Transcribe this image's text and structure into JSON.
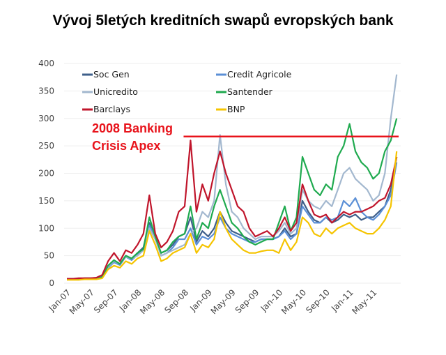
{
  "chart_data": {
    "type": "line",
    "title": "Vývoj 5letých kreditních swapů evropských bank",
    "xlabel": "",
    "ylabel": "",
    "ylim": [
      0,
      400
    ],
    "yticks": [
      0,
      50,
      100,
      150,
      200,
      250,
      300,
      350,
      400
    ],
    "xtick_labels": [
      "Jan-07",
      "May-07",
      "Sep-07",
      "Jan-08",
      "May-08",
      "Sep-08",
      "Jan-09",
      "May-09",
      "Sep-09",
      "Jan-10",
      "May-10",
      "Sep-10",
      "Jan-11",
      "May-11"
    ],
    "x_start": "Jan-07",
    "x_step": "monthly",
    "annotation": {
      "lines": [
        "2008 Banking",
        "Crisis Apex"
      ],
      "level": 267,
      "from_month_index": 21,
      "color": "#e8131b"
    },
    "series": [
      {
        "name": "Soc Gen",
        "color": "#3e5f8a",
        "values": [
          8,
          8,
          8,
          9,
          9,
          9,
          12,
          30,
          40,
          35,
          50,
          45,
          55,
          65,
          110,
          80,
          55,
          60,
          70,
          85,
          90,
          120,
          75,
          95,
          85,
          100,
          130,
          110,
          95,
          90,
          85,
          80,
          75,
          80,
          80,
          80,
          85,
          100,
          85,
          90,
          150,
          130,
          115,
          110,
          120,
          110,
          115,
          125,
          120,
          125,
          115,
          120,
          120,
          130,
          140,
          170,
          230
        ]
      },
      {
        "name": "Credit Agricole",
        "color": "#5b8fd6",
        "values": [
          7,
          7,
          7,
          8,
          8,
          8,
          11,
          28,
          38,
          33,
          48,
          42,
          52,
          60,
          105,
          85,
          50,
          55,
          65,
          80,
          80,
          100,
          70,
          85,
          80,
          90,
          120,
          100,
          90,
          85,
          80,
          75,
          75,
          80,
          80,
          80,
          85,
          95,
          80,
          90,
          140,
          125,
          110,
          110,
          120,
          115,
          120,
          150,
          140,
          155,
          130,
          120,
          115,
          125,
          140,
          160,
          220
        ]
      },
      {
        "name": "Unicredito",
        "color": "#a3b8cf",
        "values": [
          7,
          7,
          7,
          8,
          8,
          8,
          11,
          30,
          40,
          35,
          48,
          45,
          50,
          60,
          100,
          80,
          50,
          55,
          60,
          65,
          70,
          90,
          100,
          130,
          120,
          150,
          270,
          180,
          130,
          120,
          100,
          90,
          80,
          85,
          85,
          85,
          95,
          110,
          90,
          100,
          170,
          150,
          140,
          135,
          150,
          140,
          170,
          200,
          210,
          190,
          180,
          170,
          150,
          160,
          200,
          300,
          380
        ]
      },
      {
        "name": "Santender",
        "color": "#1faa4f",
        "values": [
          7,
          7,
          7,
          8,
          8,
          8,
          11,
          32,
          42,
          35,
          50,
          45,
          55,
          62,
          120,
          85,
          55,
          60,
          75,
          85,
          90,
          140,
          80,
          110,
          100,
          140,
          170,
          140,
          110,
          100,
          85,
          75,
          70,
          75,
          80,
          80,
          110,
          140,
          95,
          120,
          230,
          200,
          170,
          160,
          180,
          170,
          230,
          250,
          290,
          240,
          220,
          210,
          190,
          200,
          240,
          260,
          300
        ]
      },
      {
        "name": "Barclays",
        "color": "#c0152b",
        "values": [
          8,
          8,
          9,
          9,
          9,
          10,
          15,
          40,
          55,
          40,
          60,
          55,
          70,
          90,
          160,
          90,
          65,
          75,
          95,
          130,
          140,
          260,
          130,
          180,
          150,
          200,
          240,
          200,
          170,
          140,
          130,
          100,
          85,
          90,
          95,
          85,
          100,
          120,
          95,
          110,
          180,
          150,
          125,
          120,
          125,
          110,
          120,
          130,
          125,
          130,
          130,
          135,
          140,
          150,
          155,
          180,
          230
        ]
      },
      {
        "name": "BNP",
        "color": "#f5c400",
        "values": [
          6,
          6,
          6,
          7,
          7,
          7,
          9,
          25,
          32,
          28,
          40,
          35,
          45,
          50,
          95,
          70,
          40,
          45,
          55,
          60,
          65,
          90,
          55,
          70,
          65,
          80,
          130,
          100,
          80,
          70,
          60,
          55,
          55,
          58,
          60,
          60,
          55,
          80,
          60,
          75,
          120,
          110,
          90,
          85,
          100,
          90,
          100,
          105,
          110,
          100,
          95,
          90,
          90,
          100,
          115,
          140,
          240
        ]
      }
    ]
  }
}
